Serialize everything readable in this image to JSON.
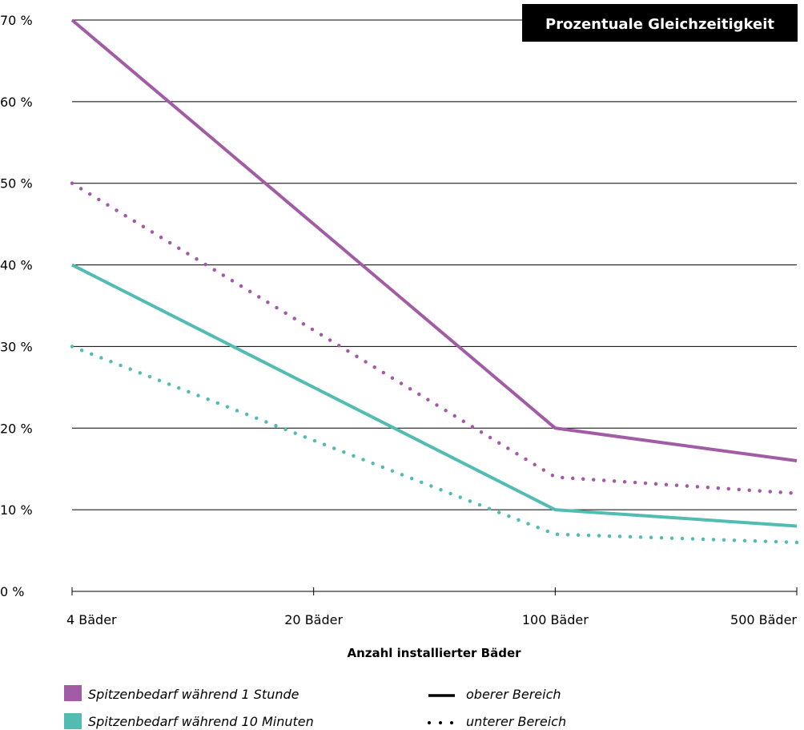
{
  "chart_data": {
    "type": "line",
    "title": "Prozentuale Gleichzeitigkeit",
    "xlabel": "Anzahl installierter Bäder",
    "ylabel": "",
    "categories": [
      "4 Bäder",
      "20 Bäder",
      "100 Bäder",
      "500 Bäder"
    ],
    "y_ticks": [
      "0 %",
      "10 %",
      "20 %",
      "30 %",
      "40 %",
      "50 %",
      "60 %",
      "70 %"
    ],
    "ylim": [
      0,
      70
    ],
    "grid": true,
    "series": [
      {
        "group": "1h",
        "range": "upper",
        "style": "solid",
        "values": [
          70,
          45,
          20,
          16
        ]
      },
      {
        "group": "1h",
        "range": "lower",
        "style": "dotted",
        "values": [
          50,
          32,
          14,
          12
        ]
      },
      {
        "group": "10m",
        "range": "upper",
        "style": "solid",
        "values": [
          40,
          25,
          10,
          8
        ]
      },
      {
        "group": "10m",
        "range": "lower",
        "style": "dotted",
        "values": [
          30,
          18.5,
          7,
          6
        ]
      }
    ],
    "legend": {
      "placement": "bottom",
      "colors": [
        {
          "group": "1h",
          "label": "Spitzenbedarf während 1 Stunde",
          "color": "#a25ca6"
        },
        {
          "group": "10m",
          "label": "Spitzenbedarf während 10 Minuten",
          "color": "#52bcb3"
        }
      ],
      "styles": [
        {
          "style": "solid",
          "label": "oberer Bereich"
        },
        {
          "style": "dotted",
          "label": "unterer Bereich"
        }
      ]
    }
  }
}
